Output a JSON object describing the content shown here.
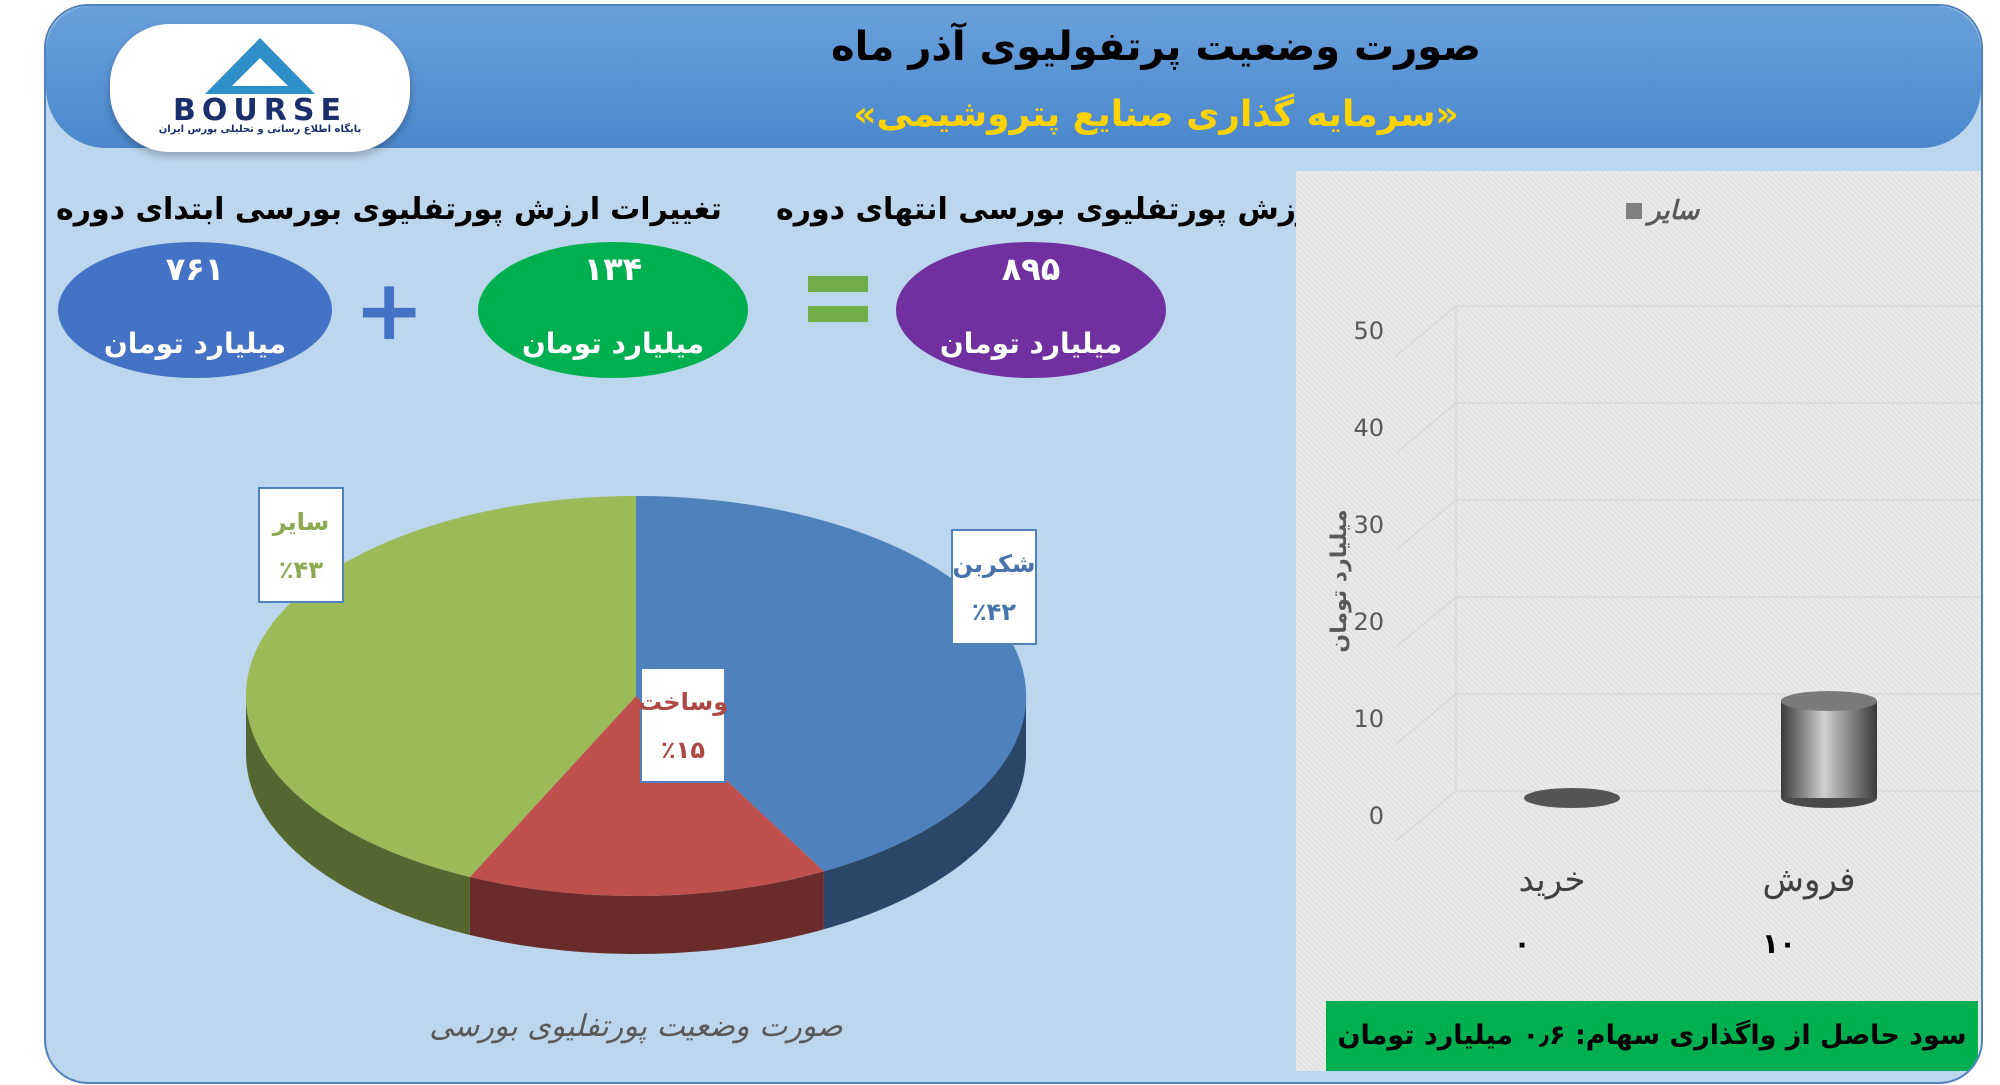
{
  "header": {
    "title": "صورت وضعیت پرتفولیوی آذر ماه",
    "subtitle": "«سرمایه گذاری صنایع پتروشیمی»"
  },
  "logo": {
    "text": "BOURSE",
    "caption": "پایگاه اطلاع رسانی و تحلیلی بورس ایران"
  },
  "summary": {
    "start": {
      "label": "ارزش پورتفلیوی بورسی ابتدای دوره",
      "value": "۷۶۱",
      "unit": "میلیارد تومان",
      "color": "#4472c4"
    },
    "change": {
      "label": "تغییرات",
      "value": "۱۳۴",
      "unit": "میلیارد تومان",
      "color": "#00b050"
    },
    "end": {
      "label": "ارزش پورتفلیوی بورسی انتهای دوره",
      "value": "۸۹۵",
      "unit": "میلیارد تومان",
      "color": "#7030a0"
    },
    "plus": "+",
    "equals": "="
  },
  "chart_data": [
    {
      "type": "pie",
      "title": "صورت وضعیت پورتفلیوی بورسی",
      "slices": [
        {
          "name": "شکربن",
          "value": 42,
          "label": "٪۴۲",
          "color": "#4f81bd"
        },
        {
          "name": "وساخت",
          "value": 15,
          "label": "٪۱۵",
          "color": "#c0504d"
        },
        {
          "name": "سایر",
          "value": 43,
          "label": "٪۴۳",
          "color": "#9bbb59"
        }
      ]
    },
    {
      "type": "bar",
      "categories": [
        "فروش",
        "خرید"
      ],
      "series": [
        {
          "name": "سایر",
          "values": [
            10,
            0
          ]
        }
      ],
      "value_labels": [
        "۱۰",
        "۰"
      ],
      "ylabel": "میلیارد تومان",
      "ylim": [
        0,
        50
      ],
      "yticks": [
        0,
        10,
        20,
        30,
        40,
        50
      ],
      "legend_position": "top",
      "grid": true
    }
  ],
  "bottom_note": "سود حاصل از واگذاری سهام: ۰٫۶ میلیارد تومان"
}
